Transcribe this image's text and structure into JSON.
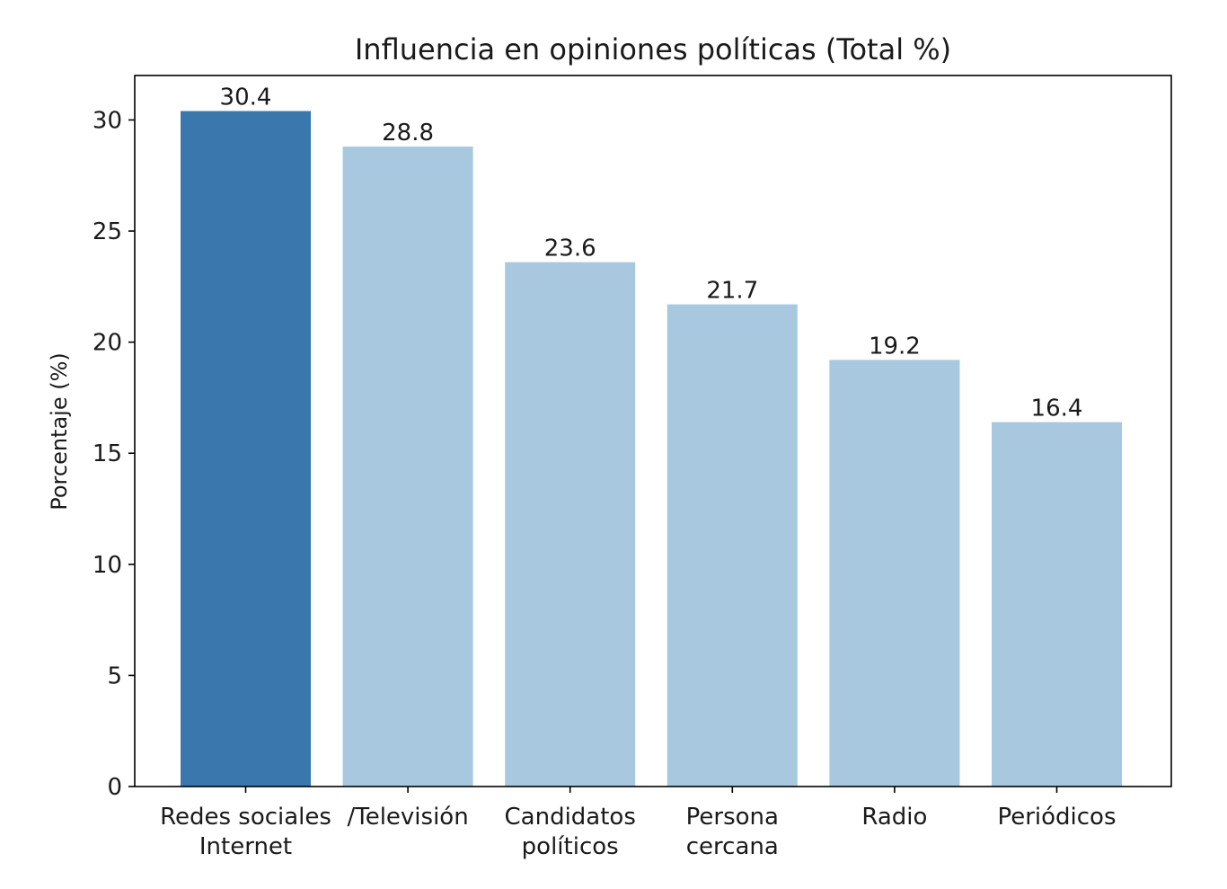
{
  "chart_data": {
    "type": "bar",
    "title": "Influencia en opiniones políticas (Total %)",
    "xlabel": "",
    "ylabel": "Porcentaje (%)",
    "ylim": [
      0,
      32
    ],
    "yticks": [
      0,
      5,
      10,
      15,
      20,
      25,
      30
    ],
    "categories": [
      [
        "Redes sociales",
        "Internet"
      ],
      [
        "/Televisión"
      ],
      [
        "Candidatos",
        "políticos"
      ],
      [
        "Persona",
        "cercana"
      ],
      [
        "Radio"
      ],
      [
        "Periódicos"
      ]
    ],
    "values": [
      30.4,
      28.8,
      23.6,
      21.7,
      19.2,
      16.4
    ],
    "data_labels": [
      "30.4",
      "28.8",
      "23.6",
      "21.7",
      "19.2",
      "16.4"
    ],
    "colors": [
      "#3a77ad",
      "#a7c8de",
      "#a7c8de",
      "#a7c8de",
      "#a7c8de",
      "#a7c8de"
    ],
    "grid": false,
    "legend": "none"
  }
}
